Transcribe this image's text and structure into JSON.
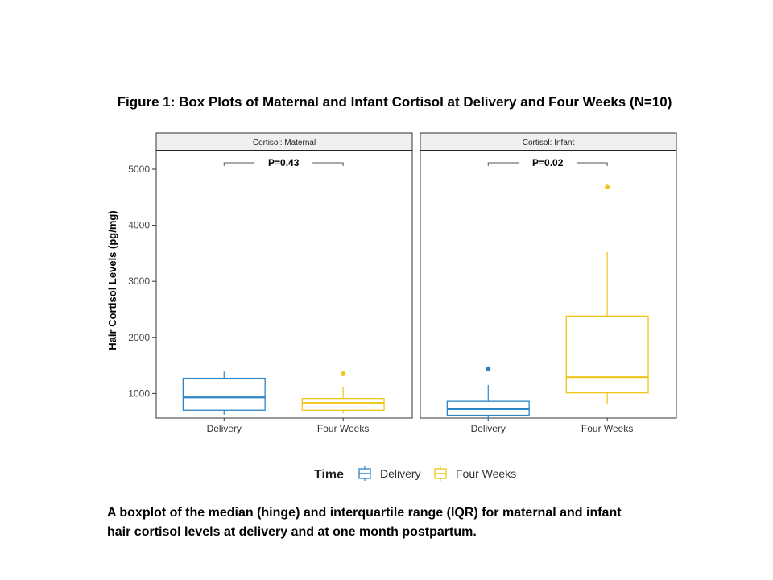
{
  "figure": {
    "title": "Figure 1: Box Plots of Maternal and Infant Cortisol at Delivery and Four Weeks (N=10)",
    "caption_line1": "A boxplot of the median (hinge) and interquartile range (IQR) for maternal and infant",
    "caption_line2": "hair cortisol levels at delivery and at one month postpartum."
  },
  "chart_data": {
    "type": "boxplot",
    "ylabel": "Hair Cortisol Levels (pg/mg)",
    "ylim": [
      560,
      5330
    ],
    "yticks": [
      1000,
      2000,
      3000,
      4000,
      5000
    ],
    "categories": [
      "Delivery",
      "Four Weeks"
    ],
    "legend": {
      "title": "Time",
      "position": "bottom",
      "entries": [
        "Delivery",
        "Four Weeks"
      ]
    },
    "colors": {
      "Delivery": "#2b84c6",
      "Four Weeks": "#f0c419"
    },
    "panels": [
      {
        "strip": "Cortisol: Maternal",
        "pvalue": "P=0.43",
        "boxes": [
          {
            "group": "Delivery",
            "whisker_low": 620,
            "q1": 700,
            "median": 930,
            "q3": 1270,
            "whisker_high": 1390,
            "outliers": []
          },
          {
            "group": "Four Weeks",
            "whisker_low": 640,
            "q1": 700,
            "median": 830,
            "q3": 910,
            "whisker_high": 1120,
            "outliers": [
              1350
            ]
          }
        ]
      },
      {
        "strip": "Cortisol: Infant",
        "pvalue": "P=0.02",
        "boxes": [
          {
            "group": "Delivery",
            "whisker_low": 530,
            "q1": 610,
            "median": 720,
            "q3": 860,
            "whisker_high": 1150,
            "outliers": [
              1440
            ]
          },
          {
            "group": "Four Weeks",
            "whisker_low": 800,
            "q1": 1010,
            "median": 1290,
            "q3": 2380,
            "whisker_high": 3520,
            "outliers": [
              4680
            ]
          }
        ]
      }
    ]
  }
}
